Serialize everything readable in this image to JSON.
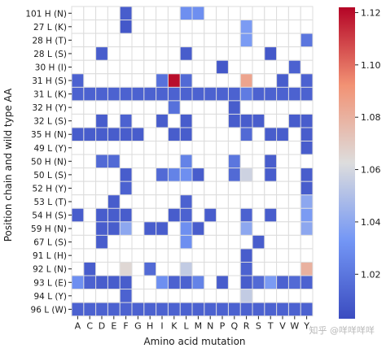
{
  "chart_data": {
    "type": "heatmap",
    "xlabel": "Amino acid mutation",
    "ylabel": "Position chain and wild type AA",
    "columns": [
      "A",
      "C",
      "D",
      "E",
      "F",
      "G",
      "H",
      "I",
      "K",
      "L",
      "M",
      "N",
      "P",
      "Q",
      "R",
      "S",
      "T",
      "V",
      "W",
      "Y"
    ],
    "rows": [
      "101 H  (N)",
      "27 L  (K)",
      "28 H  (T)",
      "28 L  (S)",
      "30 H  (I)",
      "31 H  (S)",
      "31 L  (K)",
      "32 H  (Y)",
      "32 L  (S)",
      "35 H  (N)",
      "49 L  (Y)",
      "50 H  (N)",
      "50 L  (S)",
      "52 H  (Y)",
      "53 L  (T)",
      "54 H  (S)",
      "59 H  (N)",
      "67 L  (S)",
      "91 L  (H)",
      "92 L  (N)",
      "93 L  (E)",
      "94 L  (Y)",
      "96 L  (W)"
    ],
    "colorbar": {
      "ticks": [
        1.02,
        1.04,
        1.06,
        1.08,
        1.1,
        1.12
      ],
      "tick_labels": [
        "1.02",
        "1.04",
        "1.06",
        "1.08",
        "1.10",
        "1.12"
      ],
      "vmin": 1.003,
      "vmax": 1.122
    },
    "cells": [
      [
        "101 H  (N)",
        "F",
        1.01
      ],
      [
        "101 H  (N)",
        "L",
        1.03
      ],
      [
        "101 H  (N)",
        "M",
        1.03
      ],
      [
        "27 L  (K)",
        "F",
        1.008
      ],
      [
        "27 L  (K)",
        "R",
        1.035
      ],
      [
        "28 H  (T)",
        "R",
        1.035
      ],
      [
        "28 H  (T)",
        "Y",
        1.02
      ],
      [
        "28 L  (S)",
        "D",
        1.01
      ],
      [
        "28 L  (S)",
        "L",
        1.01
      ],
      [
        "28 L  (S)",
        "T",
        1.008
      ],
      [
        "30 H  (I)",
        "P",
        1.008
      ],
      [
        "30 H  (I)",
        "W",
        1.012
      ],
      [
        "31 H  (S)",
        "A",
        1.012
      ],
      [
        "31 H  (S)",
        "I",
        1.018
      ],
      [
        "31 H  (S)",
        "K",
        1.12
      ],
      [
        "31 H  (S)",
        "L",
        1.015
      ],
      [
        "31 H  (S)",
        "R",
        1.085
      ],
      [
        "31 H  (S)",
        "V",
        1.01
      ],
      [
        "31 H  (S)",
        "Y",
        1.012
      ],
      [
        "31 L  (K)",
        "A",
        1.012
      ],
      [
        "31 L  (K)",
        "C",
        1.012
      ],
      [
        "31 L  (K)",
        "D",
        1.012
      ],
      [
        "31 L  (K)",
        "E",
        1.012
      ],
      [
        "31 L  (K)",
        "F",
        1.012
      ],
      [
        "31 L  (K)",
        "G",
        1.012
      ],
      [
        "31 L  (K)",
        "H",
        1.012
      ],
      [
        "31 L  (K)",
        "I",
        1.012
      ],
      [
        "31 L  (K)",
        "K",
        1.012
      ],
      [
        "31 L  (K)",
        "L",
        1.012
      ],
      [
        "31 L  (K)",
        "M",
        1.012
      ],
      [
        "31 L  (K)",
        "N",
        1.012
      ],
      [
        "31 L  (K)",
        "P",
        1.012
      ],
      [
        "31 L  (K)",
        "Q",
        1.012
      ],
      [
        "31 L  (K)",
        "R",
        1.022
      ],
      [
        "31 L  (K)",
        "S",
        1.012
      ],
      [
        "31 L  (K)",
        "T",
        1.012
      ],
      [
        "31 L  (K)",
        "V",
        1.012
      ],
      [
        "31 L  (K)",
        "W",
        1.012
      ],
      [
        "31 L  (K)",
        "Y",
        1.012
      ],
      [
        "32 H  (Y)",
        "K",
        1.018
      ],
      [
        "32 H  (Y)",
        "Q",
        1.01
      ],
      [
        "32 L  (S)",
        "D",
        1.01
      ],
      [
        "32 L  (S)",
        "F",
        1.012
      ],
      [
        "32 L  (S)",
        "I",
        1.01
      ],
      [
        "32 L  (S)",
        "L",
        1.01
      ],
      [
        "32 L  (S)",
        "Q",
        1.01
      ],
      [
        "32 L  (S)",
        "R",
        1.01
      ],
      [
        "32 L  (S)",
        "S",
        1.01
      ],
      [
        "32 L  (S)",
        "W",
        1.01
      ],
      [
        "32 L  (S)",
        "Y",
        1.01
      ],
      [
        "35 H  (N)",
        "A",
        1.01
      ],
      [
        "35 H  (N)",
        "C",
        1.01
      ],
      [
        "35 H  (N)",
        "D",
        1.01
      ],
      [
        "35 H  (N)",
        "E",
        1.01
      ],
      [
        "35 H  (N)",
        "F",
        1.01
      ],
      [
        "35 H  (N)",
        "G",
        1.01
      ],
      [
        "35 H  (N)",
        "K",
        1.01
      ],
      [
        "35 H  (N)",
        "L",
        1.01
      ],
      [
        "35 H  (N)",
        "R",
        1.015
      ],
      [
        "35 H  (N)",
        "T",
        1.01
      ],
      [
        "35 H  (N)",
        "V",
        1.01
      ],
      [
        "35 H  (N)",
        "Y",
        1.01
      ],
      [
        "49 L  (Y)",
        "Y",
        1.01
      ],
      [
        "50 H  (N)",
        "D",
        1.015
      ],
      [
        "50 H  (N)",
        "E",
        1.015
      ],
      [
        "50 H  (N)",
        "L",
        1.025
      ],
      [
        "50 H  (N)",
        "Q",
        1.02
      ],
      [
        "50 H  (N)",
        "T",
        1.01
      ],
      [
        "50 L  (S)",
        "F",
        1.01
      ],
      [
        "50 L  (S)",
        "I",
        1.015
      ],
      [
        "50 L  (S)",
        "K",
        1.025
      ],
      [
        "50 L  (S)",
        "L",
        1.03
      ],
      [
        "50 L  (S)",
        "M",
        1.01
      ],
      [
        "50 L  (S)",
        "Q",
        1.015
      ],
      [
        "50 L  (S)",
        "R",
        1.058
      ],
      [
        "50 L  (S)",
        "T",
        1.01
      ],
      [
        "50 L  (S)",
        "Y",
        1.01
      ],
      [
        "52 H  (Y)",
        "F",
        1.012
      ],
      [
        "52 H  (Y)",
        "Y",
        1.01
      ],
      [
        "53 L  (T)",
        "E",
        1.01
      ],
      [
        "53 L  (T)",
        "L",
        1.012
      ],
      [
        "53 L  (T)",
        "Y",
        1.04
      ],
      [
        "54 H  (S)",
        "A",
        1.01
      ],
      [
        "54 H  (S)",
        "D",
        1.01
      ],
      [
        "54 H  (S)",
        "E",
        1.01
      ],
      [
        "54 H  (S)",
        "F",
        1.01
      ],
      [
        "54 H  (S)",
        "K",
        1.01
      ],
      [
        "54 H  (S)",
        "L",
        1.012
      ],
      [
        "54 H  (S)",
        "N",
        1.01
      ],
      [
        "54 H  (S)",
        "R",
        1.012
      ],
      [
        "54 H  (S)",
        "T",
        1.01
      ],
      [
        "54 H  (S)",
        "Y",
        1.035
      ],
      [
        "59 H  (N)",
        "D",
        1.01
      ],
      [
        "59 H  (N)",
        "E",
        1.01
      ],
      [
        "59 H  (N)",
        "F",
        1.04
      ],
      [
        "59 H  (N)",
        "H",
        1.01
      ],
      [
        "59 H  (N)",
        "I",
        1.01
      ],
      [
        "59 H  (N)",
        "L",
        1.03
      ],
      [
        "59 H  (N)",
        "M",
        1.01
      ],
      [
        "59 H  (N)",
        "R",
        1.04
      ],
      [
        "59 H  (N)",
        "Y",
        1.04
      ],
      [
        "67 L  (S)",
        "D",
        1.01
      ],
      [
        "67 L  (S)",
        "L",
        1.03
      ],
      [
        "67 L  (S)",
        "S",
        1.01
      ],
      [
        "91 L  (H)",
        "R",
        1.01
      ],
      [
        "92 L  (N)",
        "C",
        1.01
      ],
      [
        "92 L  (N)",
        "F",
        1.065
      ],
      [
        "92 L  (N)",
        "H",
        1.015
      ],
      [
        "92 L  (N)",
        "L",
        1.055
      ],
      [
        "92 L  (N)",
        "R",
        1.012
      ],
      [
        "92 L  (N)",
        "Y",
        1.08
      ],
      [
        "93 L  (E)",
        "A",
        1.03
      ],
      [
        "93 L  (E)",
        "C",
        1.012
      ],
      [
        "93 L  (E)",
        "D",
        1.01
      ],
      [
        "93 L  (E)",
        "E",
        1.01
      ],
      [
        "93 L  (E)",
        "F",
        1.01
      ],
      [
        "93 L  (E)",
        "I",
        1.03
      ],
      [
        "93 L  (E)",
        "K",
        1.012
      ],
      [
        "93 L  (E)",
        "L",
        1.012
      ],
      [
        "93 L  (E)",
        "M",
        1.025
      ],
      [
        "93 L  (E)",
        "P",
        1.01
      ],
      [
        "93 L  (E)",
        "R",
        1.01
      ],
      [
        "93 L  (E)",
        "S",
        1.015
      ],
      [
        "93 L  (E)",
        "T",
        1.035
      ],
      [
        "93 L  (E)",
        "V",
        1.012
      ],
      [
        "93 L  (E)",
        "W",
        1.015
      ],
      [
        "93 L  (E)",
        "Y",
        1.012
      ],
      [
        "94 L  (Y)",
        "F",
        1.012
      ],
      [
        "94 L  (Y)",
        "R",
        1.055
      ],
      [
        "96 L  (W)",
        "A",
        1.012
      ],
      [
        "96 L  (W)",
        "C",
        1.012
      ],
      [
        "96 L  (W)",
        "D",
        1.012
      ],
      [
        "96 L  (W)",
        "E",
        1.012
      ],
      [
        "96 L  (W)",
        "F",
        1.012
      ],
      [
        "96 L  (W)",
        "G",
        1.012
      ],
      [
        "96 L  (W)",
        "H",
        1.012
      ],
      [
        "96 L  (W)",
        "I",
        1.012
      ],
      [
        "96 L  (W)",
        "K",
        1.012
      ],
      [
        "96 L  (W)",
        "L",
        1.012
      ],
      [
        "96 L  (W)",
        "M",
        1.012
      ],
      [
        "96 L  (W)",
        "N",
        1.012
      ],
      [
        "96 L  (W)",
        "P",
        1.012
      ],
      [
        "96 L  (W)",
        "Q",
        1.012
      ],
      [
        "96 L  (W)",
        "R",
        1.012
      ],
      [
        "96 L  (W)",
        "S",
        1.012
      ],
      [
        "96 L  (W)",
        "T",
        1.012
      ],
      [
        "96 L  (W)",
        "V",
        1.012
      ],
      [
        "96 L  (W)",
        "W",
        1.012
      ],
      [
        "96 L  (W)",
        "Y",
        1.012
      ]
    ]
  },
  "watermark": "知乎 @咩咩咩咩"
}
